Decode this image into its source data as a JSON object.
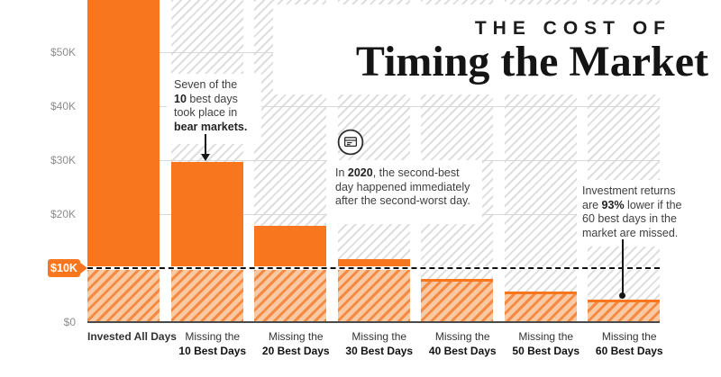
{
  "header": {
    "kicker": "THE COST OF",
    "title": "Timing the Market"
  },
  "chart_data": {
    "type": "bar",
    "title": "The Cost of Timing the Market",
    "categories": [
      "Invested All Days",
      "Missing the\n10 Best Days",
      "Missing the\n20 Best Days",
      "Missing the\n30 Best Days",
      "Missing the\n40 Best Days",
      "Missing the\n50 Best Days",
      "Missing the\n60 Best Days"
    ],
    "values": [
      64844,
      29708,
      17826,
      11701,
      8048,
      5746,
      4205
    ],
    "xlabel": "",
    "ylabel": "",
    "ylim": [
      0,
      60000
    ],
    "grid": true,
    "legend": false,
    "yticks": [
      {
        "value": 0,
        "label": "$0"
      },
      {
        "value": 10000,
        "label": "$10K",
        "highlighted": true
      },
      {
        "value": 20000,
        "label": "$20K"
      },
      {
        "value": 30000,
        "label": "$30K"
      },
      {
        "value": 40000,
        "label": "$40K"
      },
      {
        "value": 50000,
        "label": "$50K"
      }
    ],
    "threshold_value": 10000,
    "threshold_label": "$10K"
  },
  "annotations": [
    {
      "name": "bear-markets",
      "lines": [
        [
          {
            "t": "Seven of the"
          }
        ],
        [
          {
            "t": "10",
            "b": true
          },
          {
            "t": " best days"
          }
        ],
        [
          {
            "t": "took place in"
          }
        ],
        [
          {
            "t": "bear markets.",
            "b": true
          }
        ]
      ]
    },
    {
      "name": "2020",
      "lines": [
        [
          {
            "t": "In "
          },
          {
            "t": "2020",
            "b": true
          },
          {
            "t": ", the second-best"
          }
        ],
        [
          {
            "t": "day happened immediately"
          }
        ],
        [
          {
            "t": "after the second-worst day."
          }
        ]
      ]
    },
    {
      "name": "93-percent",
      "lines": [
        [
          {
            "t": "Investment returns"
          }
        ],
        [
          {
            "t": "are "
          },
          {
            "t": "93%",
            "b": true
          },
          {
            "t": " lower if the"
          }
        ],
        [
          {
            "t": "60 best days in the"
          }
        ],
        [
          {
            "t": "market are missed."
          }
        ]
      ]
    }
  ],
  "icons": [
    {
      "name": "newspaper-icon"
    }
  ],
  "colors": {
    "accent": "#f8761e",
    "accent_hatch_stripe": "#f58a43",
    "accent_hatch_bg": "#f9c9a3",
    "background_hatch_stripe": "#dedede",
    "gridline": "#d8d8d8",
    "axis": "#4a4a4a",
    "text_gray": "#8c8c8c",
    "text_dark": "#1a1a1a"
  }
}
